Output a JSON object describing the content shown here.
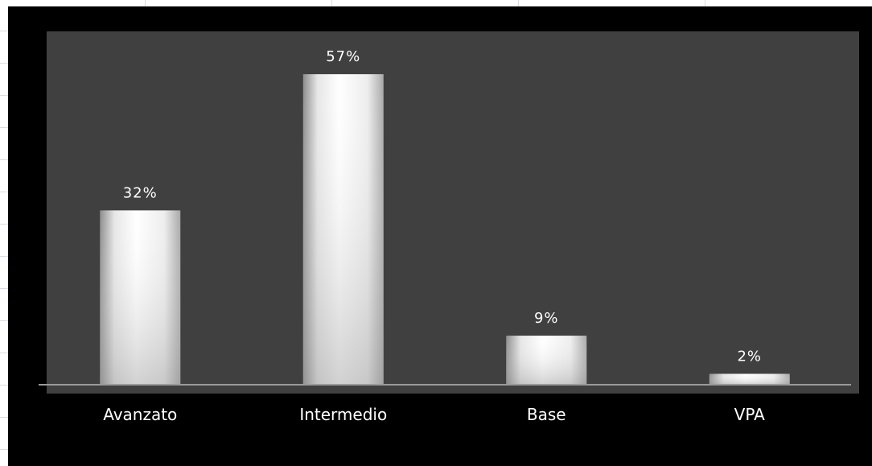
{
  "chart_data": {
    "type": "bar",
    "categories": [
      "Avanzato",
      "Intermedio",
      "Base",
      "VPA"
    ],
    "values": [
      32,
      57,
      9,
      2
    ],
    "data_labels": [
      "32%",
      "57%",
      "9%",
      "2%"
    ],
    "title": "",
    "xlabel": "",
    "ylabel": "",
    "ylim": [
      0,
      65
    ],
    "grid": false,
    "legend": "none",
    "colors": {
      "frame": "#000000",
      "plot_background": "#404040",
      "bar": "#ffffff",
      "bar_shade": "#9a9a9a",
      "text": "#ffffff",
      "baseline": "#9a9a9a",
      "sheet_grid": "#d7dde6"
    }
  }
}
